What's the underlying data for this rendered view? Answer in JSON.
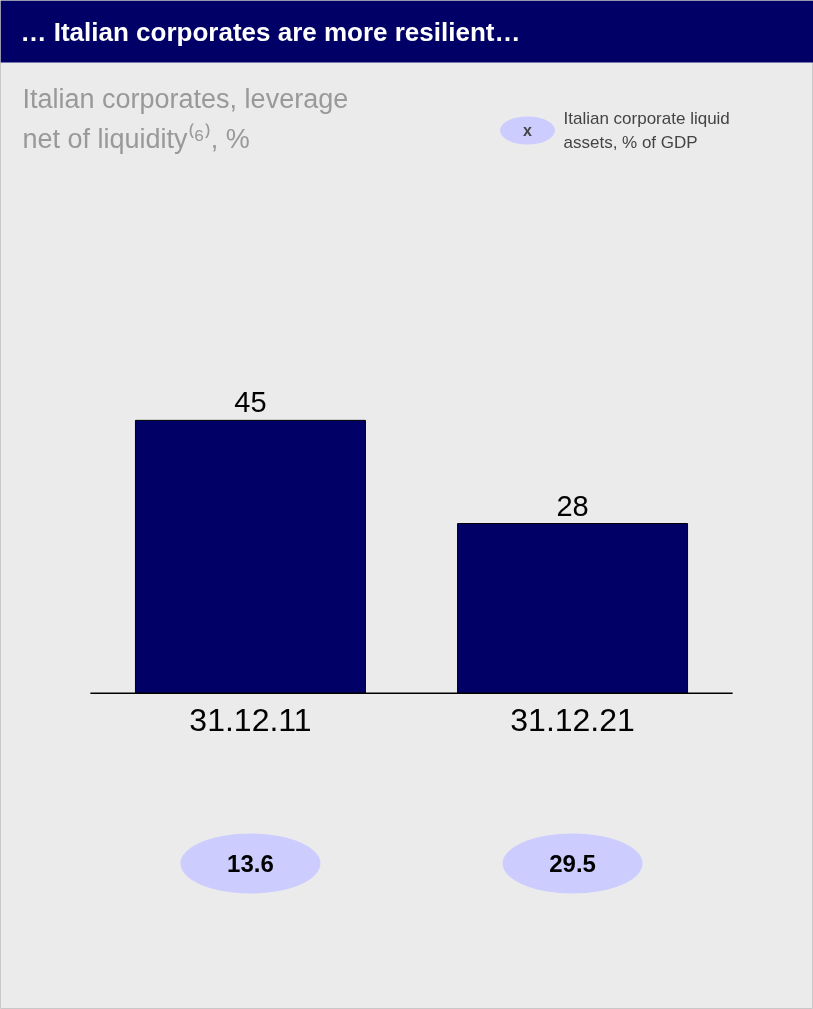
{
  "chart_data": {
    "type": "bar",
    "title": "… Italian corporates are more resilient…",
    "subtitle": "Italian corporates, leverage net of liquidity⁽⁶⁾, %",
    "categories": [
      "31.12.11",
      "31.12.21"
    ],
    "values": [
      45,
      28
    ],
    "color": "#000066",
    "data_labels": true,
    "annotations": [
      "x",
      "Italian corporate liquid assets, % of GDP",
      "13.6",
      "29.5"
    ]
  }
}
